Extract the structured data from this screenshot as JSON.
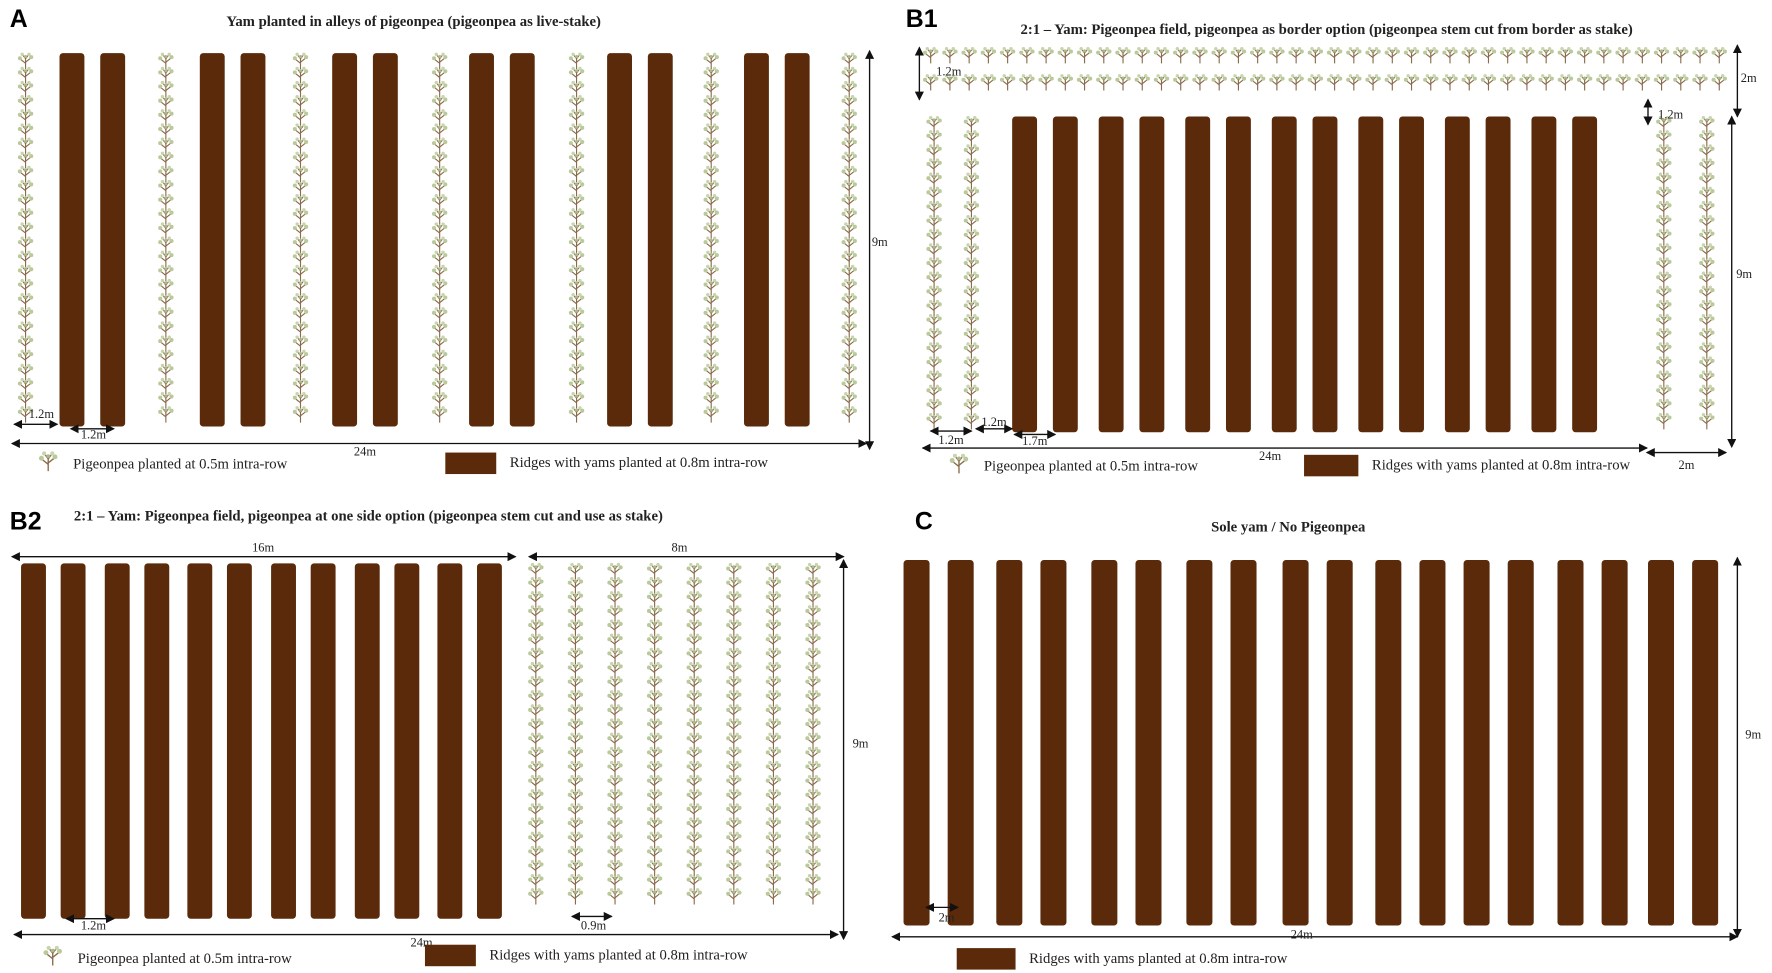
{
  "panels": [
    {
      "label": "A",
      "title": "Yam planted in alleys of pigeonpea (pigeonpea as live-stake)",
      "dimensions": [
        "1.2m",
        "1.2m",
        "24m",
        "9m"
      ],
      "legend": [
        "Pigeonpea planted at 0.5m intra-row",
        "Ridges with yams planted at 0.8m intra-row"
      ]
    },
    {
      "label": "B1",
      "title": "2:1 – Yam: Pigeonpea field, pigeonpea as border option (pigeonpea stem cut from border as stake)",
      "dimensions": [
        "1.2m",
        "2m",
        "1.2m",
        "9m",
        "1.2m",
        "1.2m",
        "1.7m",
        "24m",
        "2m"
      ],
      "legend": [
        "Pigeonpea planted at 0.5m intra-row",
        "Ridges with yams planted at 0.8m intra-row"
      ]
    },
    {
      "label": "B2",
      "title": "2:1 – Yam: Pigeonpea field, pigeonpea at one side option (pigeonpea stem cut and use as stake)",
      "dimensions": [
        "16m",
        "8m",
        "9m",
        "1.2m",
        "0.9m",
        "24m"
      ],
      "legend": [
        "Pigeonpea planted at 0.5m intra-row",
        "Ridges with yams planted at 0.8m intra-row"
      ]
    },
    {
      "label": "C",
      "title": "Sole yam / No Pigeonpea",
      "dimensions": [
        "9m",
        "2m",
        "24m"
      ],
      "legend": [
        "Ridges with yams planted at 0.8m intra-row"
      ]
    }
  ]
}
